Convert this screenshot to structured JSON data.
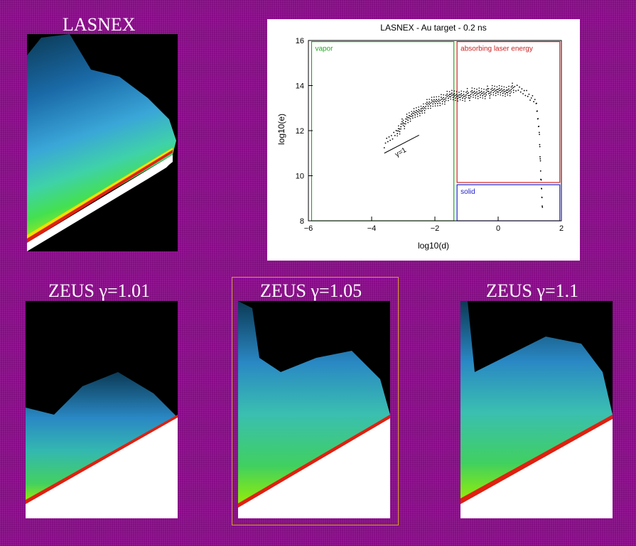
{
  "titles": {
    "lasnex": "LASNEX",
    "zeus1": "ZEUS γ=1.01",
    "zeus2": "ZEUS γ=1.05",
    "zeus3": "ZEUS γ=1.1"
  },
  "colors": {
    "background": "#8c0e8c",
    "vapor_box": "#22aa22",
    "absorbing_box": "#cc2222",
    "solid_box": "#2222cc",
    "highlight_frame": "#d4a020"
  },
  "chart_data": {
    "type": "scatter",
    "title": "LASNEX - Au target - 0.2 ns",
    "xlabel": "log10(d)",
    "ylabel": "log10(e)",
    "xlim": [
      -6,
      2
    ],
    "ylim": [
      8,
      16
    ],
    "xticks": [
      "−6",
      "−4",
      "−2",
      "0",
      "2"
    ],
    "yticks": [
      "8",
      "10",
      "12",
      "14",
      "16"
    ],
    "regions": [
      {
        "label": "vapor",
        "x": [
          -5.9,
          -1.4
        ],
        "y": [
          8.0,
          15.95
        ],
        "color": "#22aa22"
      },
      {
        "label": "absorbing laser energy",
        "x": [
          -1.3,
          1.95
        ],
        "y": [
          9.7,
          15.95
        ],
        "color": "#cc2222"
      },
      {
        "label": "solid",
        "x": [
          -1.3,
          1.95
        ],
        "y": [
          8.0,
          9.6
        ],
        "color": "#2222cc"
      }
    ],
    "reference_line": {
      "label": "γ=1",
      "x": [
        -3.6,
        -2.5
      ],
      "y": [
        11.0,
        11.8
      ]
    },
    "series": [
      {
        "x": [
          -3.6,
          -3.3,
          -3.0,
          -2.7,
          -2.4,
          -2.1,
          -1.8,
          -1.5,
          -1.2,
          -0.9,
          -0.6,
          -0.3,
          0.0,
          0.3,
          0.6,
          0.9,
          1.2,
          1.3,
          1.35,
          1.4
        ],
        "y": [
          11.4,
          11.8,
          12.3,
          12.7,
          13.0,
          13.2,
          13.4,
          13.5,
          13.55,
          13.6,
          13.65,
          13.7,
          13.75,
          13.8,
          13.85,
          13.7,
          13.2,
          12.0,
          10.0,
          8.6
        ]
      }
    ]
  }
}
